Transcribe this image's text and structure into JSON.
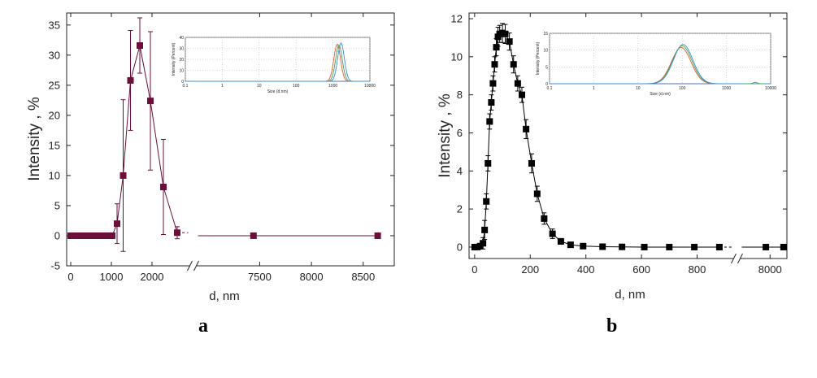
{
  "panel_labels": [
    "a",
    "b"
  ],
  "chart_data": [
    {
      "type": "line",
      "panel": "a",
      "xlabel": "d, nm",
      "ylabel": "Intensity , %",
      "ylim": [
        -5,
        37
      ],
      "yticks": [
        -5,
        0,
        5,
        10,
        15,
        20,
        25,
        30,
        35
      ],
      "axis_break": true,
      "segments": [
        {
          "xlim": [
            -100,
            2900
          ],
          "xticks": [
            0,
            1000,
            2000
          ]
        },
        {
          "xlim": [
            6900,
            8800
          ],
          "xticks": [
            7500,
            8000,
            8500
          ]
        }
      ],
      "series": [
        {
          "color": "#6b0f3a",
          "marker": "square",
          "x": [
            0,
            60,
            120,
            180,
            240,
            300,
            360,
            420,
            480,
            540,
            600,
            660,
            720,
            780,
            840,
            900,
            960,
            1020,
            1140,
            1290,
            1470,
            1700,
            1960,
            2280,
            2620,
            7440,
            8640
          ],
          "y": [
            0,
            0,
            0,
            0,
            0,
            0,
            0,
            0,
            0,
            0,
            0,
            0,
            0,
            0,
            0,
            0,
            0,
            0,
            2,
            10,
            25.8,
            31.6,
            22.4,
            8.1,
            0.5,
            0,
            0
          ],
          "yerr": [
            0,
            0,
            0,
            0,
            0,
            0,
            0,
            0,
            0,
            0,
            0,
            0,
            0,
            0,
            0,
            0,
            0,
            0,
            3.3,
            12.6,
            8.3,
            4.6,
            11.5,
            7.9,
            1.0,
            0,
            0
          ]
        }
      ],
      "inset": {
        "type": "line",
        "xscale": "log",
        "xlabel": "Size (d.nm)",
        "ylabel": "Intensity (Percent)",
        "xlim": [
          0.1,
          10000
        ],
        "xticks": [
          "0.1",
          "1",
          "10",
          "100",
          "1000",
          "10000"
        ],
        "ylim": [
          0,
          40
        ],
        "yticks": [
          0,
          10,
          20,
          30,
          40
        ],
        "series": [
          {
            "color": "#e8563c",
            "peak": 1300,
            "height": 34
          },
          {
            "color": "#43a84a",
            "peak": 1450,
            "height": 33
          },
          {
            "color": "#3a8fd4",
            "peak": 1650,
            "height": 35
          }
        ]
      }
    },
    {
      "type": "line",
      "panel": "b",
      "xlabel": "d, nm",
      "ylabel": "Intensity , %",
      "ylim": [
        -0.6,
        12.3
      ],
      "yticks": [
        0,
        2,
        4,
        6,
        8,
        10,
        12
      ],
      "axis_break": true,
      "segments": [
        {
          "xlim": [
            -20,
            930
          ],
          "xticks": [
            0,
            200,
            400,
            600,
            800
          ]
        },
        {
          "xlim": [
            7650,
            8200
          ],
          "xticks": [
            8000
          ]
        }
      ],
      "series": [
        {
          "color": "#000000",
          "marker": "square",
          "x": [
            0,
            10,
            20,
            30,
            36,
            42,
            48,
            54,
            60,
            66,
            72,
            78,
            84,
            90,
            100,
            110,
            125,
            140,
            155,
            170,
            185,
            205,
            225,
            250,
            280,
            310,
            345,
            390,
            460,
            530,
            610,
            700,
            790,
            880,
            7950,
            8160
          ],
          "y": [
            0,
            0,
            0.05,
            0.2,
            0.9,
            2.4,
            4.4,
            6.6,
            7.6,
            8.6,
            9.6,
            10.5,
            11.05,
            11.2,
            11.25,
            11.2,
            10.8,
            9.6,
            8.6,
            8.0,
            6.2,
            4.4,
            2.8,
            1.5,
            0.7,
            0.3,
            0.12,
            0.05,
            0.02,
            0.01,
            0,
            0,
            0,
            0,
            0,
            0
          ],
          "yerr": [
            0,
            0,
            0.1,
            0.3,
            0.5,
            0.4,
            0.4,
            0.4,
            0.4,
            0.4,
            0.4,
            0.45,
            0.5,
            0.45,
            0.5,
            0.5,
            0.45,
            0.45,
            0.4,
            0.4,
            0.5,
            0.5,
            0.4,
            0.3,
            0.25,
            0.15,
            0.1,
            0.05,
            0,
            0,
            0,
            0,
            0,
            0,
            0,
            0
          ]
        }
      ],
      "inset": {
        "type": "line",
        "xscale": "log",
        "xlabel": "Size (d.nm)",
        "ylabel": "Intensity (Percent)",
        "xlim": [
          0.1,
          10000
        ],
        "xticks": [
          "0.1",
          "1",
          "10",
          "100",
          "1000",
          "10000"
        ],
        "ylim": [
          0,
          15
        ],
        "yticks": [
          0,
          5,
          10,
          15
        ],
        "series": [
          {
            "color": "#e8563c",
            "peak": 95,
            "height": 10.8
          },
          {
            "color": "#43a84a",
            "peak": 100,
            "height": 11.3
          },
          {
            "color": "#3a8fd4",
            "peak": 105,
            "height": 11.7
          }
        ]
      }
    }
  ]
}
